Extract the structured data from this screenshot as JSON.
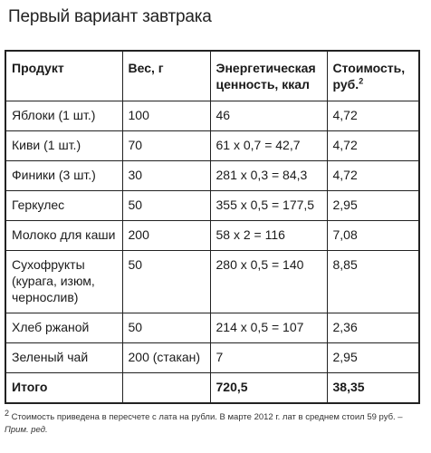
{
  "title": "Первый вариант завтрака",
  "table": {
    "headers": {
      "product": "Продукт",
      "weight": "Вес, г",
      "energy": "Энергетическая ценность, ккал",
      "cost": "Стоимость, руб.",
      "cost_footnote_mark": "2"
    },
    "rows": [
      {
        "product": "Яблоки (1 шт.)",
        "weight": "100",
        "energy": "46",
        "cost": "4,72"
      },
      {
        "product": "Киви (1 шт.)",
        "weight": "70",
        "energy": "61 x 0,7 = 42,7",
        "cost": "4,72"
      },
      {
        "product": "Финики (3 шт.)",
        "weight": "30",
        "energy": "281 x 0,3 = 84,3",
        "cost": "4,72"
      },
      {
        "product": "Геркулес",
        "weight": "50",
        "energy": "355 x 0,5 = 177,5",
        "cost": "2,95"
      },
      {
        "product": "Молоко для каши",
        "weight": "200",
        "energy": "58 x 2 = 116",
        "cost": "7,08"
      },
      {
        "product": "Сухофрукты (курага, изюм, чернослив)",
        "weight": "50",
        "energy": "280 x 0,5 = 140",
        "cost": "8,85"
      },
      {
        "product": "Хлеб ржаной",
        "weight": "50",
        "energy": "214 x 0,5 = 107",
        "cost": "2,36"
      },
      {
        "product": "Зеленый чай",
        "weight": "200 (стакан)",
        "energy": "7",
        "cost": "2,95"
      }
    ],
    "total": {
      "label": "Итого",
      "weight": "",
      "energy": "720,5",
      "cost": "38,35"
    }
  },
  "footnote": {
    "mark": "2",
    "text": "Стоимость приведена в пересчете с лата на рубли. В марте 2012 г. лат в среднем стоил 59 руб. –",
    "tag": "Прим. ред."
  }
}
